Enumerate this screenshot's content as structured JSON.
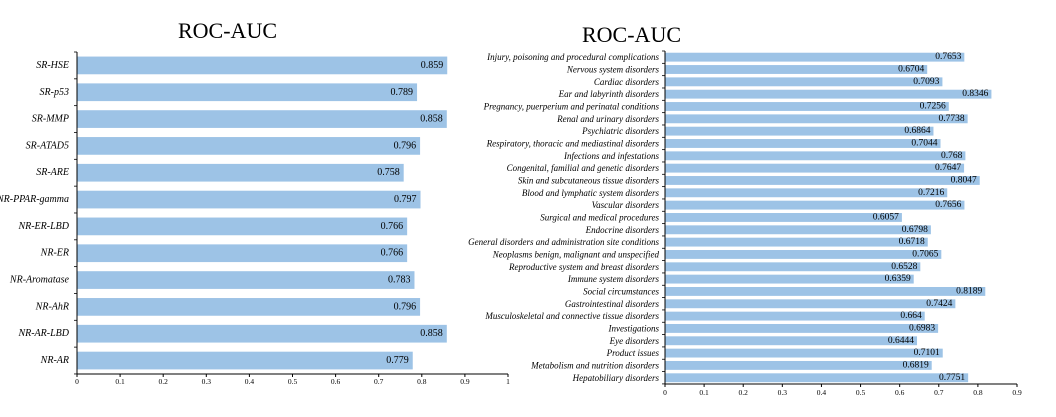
{
  "colors": {
    "bar": "#9dc3e6",
    "axis": "#000000",
    "text": "#000000"
  },
  "chart_data": [
    {
      "type": "bar",
      "orientation": "horizontal",
      "title": "ROC-AUC",
      "xlim": [
        0,
        1
      ],
      "xticks": [
        0,
        0.1,
        0.2,
        0.3,
        0.4,
        0.5,
        0.6,
        0.7,
        0.8,
        0.9,
        1
      ],
      "xtick_labels": [
        "0",
        "0.1",
        "0.2",
        "0.3",
        "0.4",
        "0.5",
        "0.6",
        "0.7",
        "0.8",
        "0.9",
        "1"
      ],
      "categories": [
        "SR-HSE",
        "SR-p53",
        "SR-MMP",
        "SR-ATAD5",
        "SR-ARE",
        "NR-PPAR-gamma",
        "NR-ER-LBD",
        "NR-ER",
        "NR-Aromatase",
        "NR-AhR",
        "NR-AR-LBD",
        "NR-AR"
      ],
      "values": [
        0.859,
        0.789,
        0.858,
        0.796,
        0.758,
        0.797,
        0.766,
        0.766,
        0.783,
        0.796,
        0.858,
        0.779
      ],
      "value_labels": [
        "0.859",
        "0.789",
        "0.858",
        "0.796",
        "0.758",
        "0.797",
        "0.766",
        "0.766",
        "0.783",
        "0.796",
        "0.858",
        "0.779"
      ],
      "grid": false,
      "legend": "none"
    },
    {
      "type": "bar",
      "orientation": "horizontal",
      "title": "ROC-AUC",
      "xlim": [
        0,
        0.9
      ],
      "xticks": [
        0,
        0.1,
        0.2,
        0.3,
        0.4,
        0.5,
        0.6,
        0.7,
        0.8,
        0.9
      ],
      "xtick_labels": [
        "0",
        "0.1",
        "0.2",
        "0.3",
        "0.4",
        "0.5",
        "0.6",
        "0.7",
        "0.8",
        "0.9"
      ],
      "categories": [
        "Injury, poisoning and procedural complications",
        "Nervous system disorders",
        "Cardiac disorders",
        "Ear and labyrinth disorders",
        "Pregnancy, puerperium and perinatal conditions",
        "Renal and urinary disorders",
        "Psychiatric disorders",
        "Respiratory, thoracic and mediastinal disorders",
        "Infections and infestations",
        "Congenital, familial and genetic disorders",
        "Skin and subcutaneous tissue disorders",
        "Blood and lymphatic system disorders",
        "Vascular disorders",
        "Surgical and medical procedures",
        "Endocrine disorders",
        "General disorders and administration site conditions",
        "Neoplasms benign, malignant and unspecified",
        "Reproductive system and breast disorders",
        "Immune system disorders",
        "Social circumstances",
        "Gastrointestinal disorders",
        "Musculoskeletal and connective tissue disorders",
        "Investigations",
        "Eye disorders",
        "Product issues",
        "Metabolism and nutrition disorders",
        "Hepatobiliary disorders"
      ],
      "values": [
        0.7653,
        0.6704,
        0.7093,
        0.8346,
        0.7256,
        0.7738,
        0.6864,
        0.7044,
        0.768,
        0.7647,
        0.8047,
        0.7216,
        0.7656,
        0.6057,
        0.6798,
        0.6718,
        0.7065,
        0.6528,
        0.6359,
        0.8189,
        0.7424,
        0.664,
        0.6983,
        0.6444,
        0.7101,
        0.6819,
        0.7751
      ],
      "value_labels": [
        "0.7653",
        "0.6704",
        "0.7093",
        "0.8346",
        "0.7256",
        "0.7738",
        "0.6864",
        "0.7044",
        "0.768",
        "0.7647",
        "0.8047",
        "0.7216",
        "0.7656",
        "0.6057",
        "0.6798",
        "0.6718",
        "0.7065",
        "0.6528",
        "0.6359",
        "0.8189",
        "0.7424",
        "0.664",
        "0.6983",
        "0.6444",
        "0.7101",
        "0.6819",
        "0.7751"
      ],
      "grid": false,
      "legend": "none"
    }
  ]
}
